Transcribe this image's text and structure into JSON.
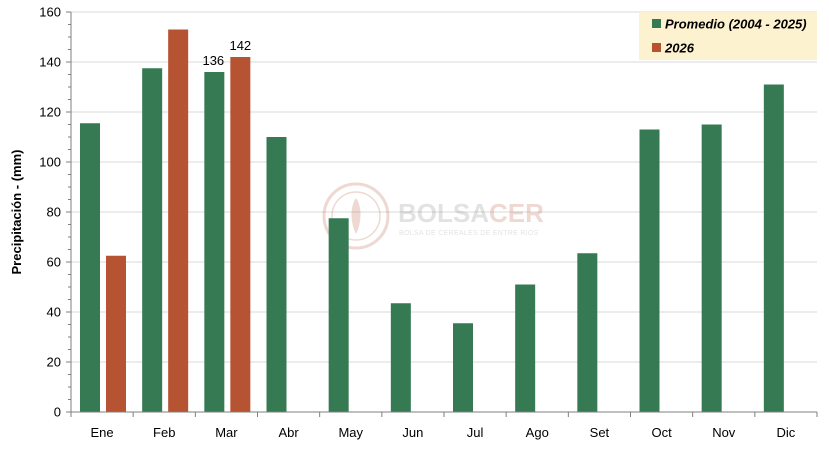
{
  "chart_data": {
    "type": "bar",
    "ylabel": "Precipitación - (mm)",
    "ylim": [
      0,
      160
    ],
    "yticks": [
      0,
      20,
      40,
      60,
      80,
      100,
      120,
      140,
      160
    ],
    "grid": true,
    "legend_position": "top-right",
    "categories": [
      "Ene",
      "Feb",
      "Mar",
      "Abr",
      "May",
      "Jun",
      "Jul",
      "Ago",
      "Set",
      "Oct",
      "Nov",
      "Dic"
    ],
    "series": [
      {
        "name": "Promedio (2004 - 2025)",
        "color": "#357a52",
        "values": [
          115.5,
          137.5,
          136,
          110,
          77.5,
          43.5,
          35.5,
          51,
          63.5,
          113,
          115,
          131
        ]
      },
      {
        "name": "2026",
        "color": "#b65332",
        "values": [
          62.5,
          153,
          142,
          null,
          null,
          null,
          null,
          null,
          null,
          null,
          null,
          null
        ]
      }
    ],
    "annotations": [
      {
        "category": "Mar",
        "series": 0,
        "text": "136"
      },
      {
        "category": "Mar",
        "series": 1,
        "text": "142"
      }
    ]
  },
  "watermark": {
    "text_primary": "BOLSA",
    "text_accent": "CER",
    "subtitle": "BOLSA DE CEREALES DE ENTRE RIOS"
  },
  "colors": {
    "grid": "#d9d9d9",
    "axis": "#7f7f7f",
    "legend_bg": "#fdf2cf"
  }
}
